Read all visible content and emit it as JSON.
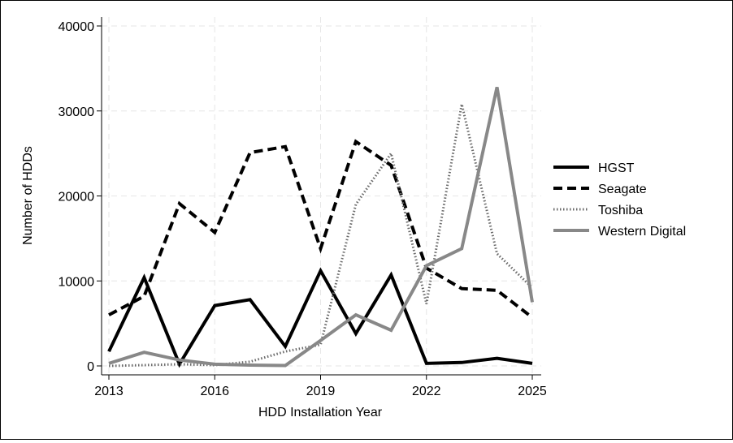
{
  "chart_data": {
    "type": "line",
    "title": "",
    "xlabel": "HDD Installation Year",
    "ylabel": "Number of HDDs",
    "x": [
      2013,
      2014,
      2015,
      2016,
      2017,
      2018,
      2019,
      2020,
      2021,
      2022,
      2023,
      2024,
      2025
    ],
    "xticks": [
      "2013",
      "2016",
      "2019",
      "2022",
      "2025"
    ],
    "yticks": [
      "0",
      "10000",
      "20000",
      "30000",
      "40000"
    ],
    "xlim": [
      2013,
      2025
    ],
    "ylim": [
      0,
      40000
    ],
    "grid": true,
    "legend_position": "right",
    "series": [
      {
        "name": "HGST",
        "color": "#000000",
        "style": "solid",
        "values": [
          1700,
          10400,
          200,
          7100,
          7800,
          2300,
          11200,
          3800,
          10700,
          300,
          400,
          900,
          300
        ]
      },
      {
        "name": "Seagate",
        "color": "#000000",
        "style": "dashed",
        "values": [
          6000,
          8200,
          19100,
          15700,
          25100,
          25800,
          13800,
          26400,
          23600,
          11500,
          9100,
          8900,
          5700
        ]
      },
      {
        "name": "Toshiba",
        "color": "#6a6a6a",
        "style": "dotted",
        "values": [
          0,
          100,
          200,
          100,
          500,
          1700,
          2500,
          19000,
          25000,
          7300,
          30800,
          13200,
          9200
        ]
      },
      {
        "name": "Western Digital",
        "color": "#888888",
        "style": "solid",
        "values": [
          300,
          1600,
          700,
          200,
          100,
          50,
          3000,
          6000,
          4200,
          11800,
          13800,
          32800,
          7500
        ]
      }
    ]
  }
}
